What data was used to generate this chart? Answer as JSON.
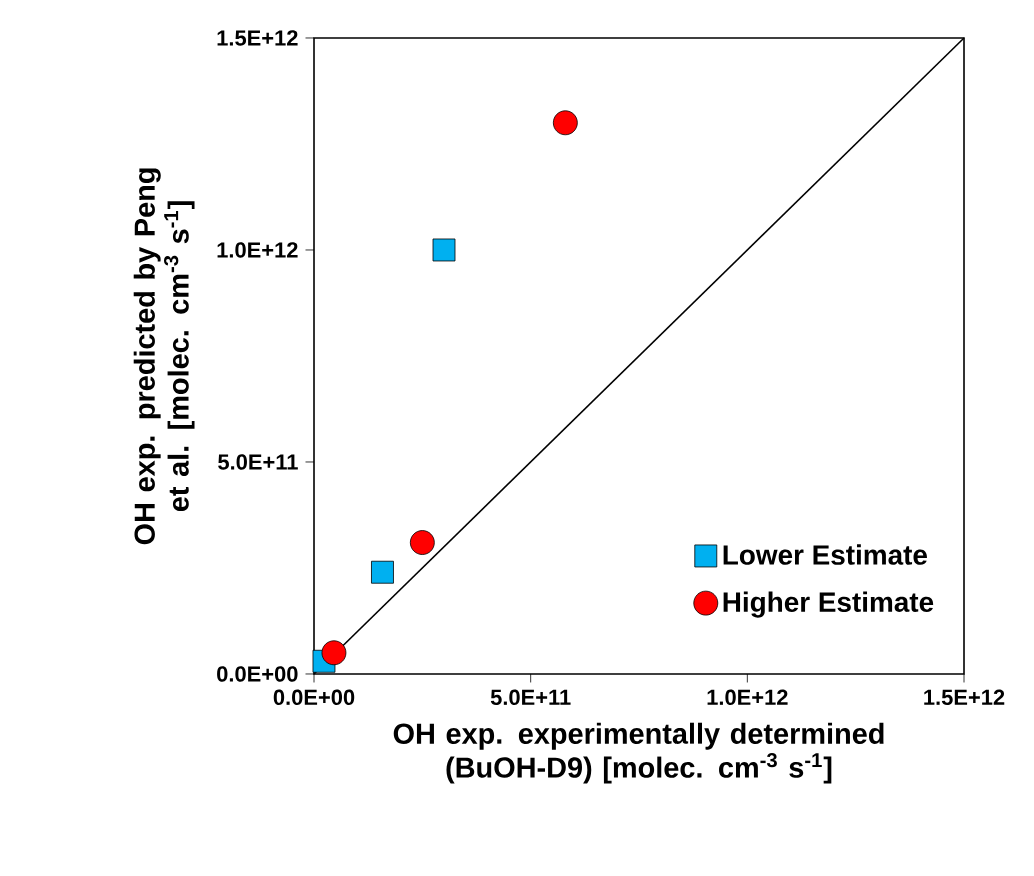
{
  "chart_data": {
    "type": "scatter",
    "xlabel": "OH exp. experimentally determined (BuOH-D9) [molec. cm$^{-3}$ s$^{-1}$]",
    "ylabel": "OH exp. predicted by Peng et al. [molec. cm$^{-3}$ s$^{-1}$]",
    "xlim": [
      0,
      1500000000000.0
    ],
    "ylim": [
      0,
      1500000000000.0
    ],
    "xticks": [
      {
        "value": 0,
        "label": "0.0E+00"
      },
      {
        "value": 500000000000.0,
        "label": "5.0E+11"
      },
      {
        "value": 1000000000000.0,
        "label": "1.0E+12"
      },
      {
        "value": 1500000000000.0,
        "label": "1.5E+12"
      }
    ],
    "yticks": [
      {
        "value": 0,
        "label": "0.0E+00"
      },
      {
        "value": 500000000000.0,
        "label": "5.0E+11"
      },
      {
        "value": 1000000000000.0,
        "label": "1.0E+12"
      },
      {
        "value": 1500000000000.0,
        "label": "1.5E+12"
      }
    ],
    "legend": "bottom right",
    "series": [
      {
        "type": "line",
        "color": "#000000",
        "x": [
          0,
          1500000000000.0
        ],
        "values": [
          0,
          1500000000000.0
        ],
        "marker": "none"
      },
      {
        "name": "Lower Estimate",
        "color": "#00b0f0",
        "marker": "square",
        "x": [
          23000000000.0,
          158000000000.0,
          300000000000.0
        ],
        "values": [
          30000000000.0,
          240000000000.0,
          1000000000000.0
        ]
      },
      {
        "name": "Higher Estimate",
        "color": "#ff0000",
        "marker": "circle",
        "x": [
          46000000000.0,
          250000000000.0,
          580000000000.0
        ],
        "values": [
          50000000000.0,
          310000000000.0,
          1300000000000.0
        ]
      }
    ]
  }
}
